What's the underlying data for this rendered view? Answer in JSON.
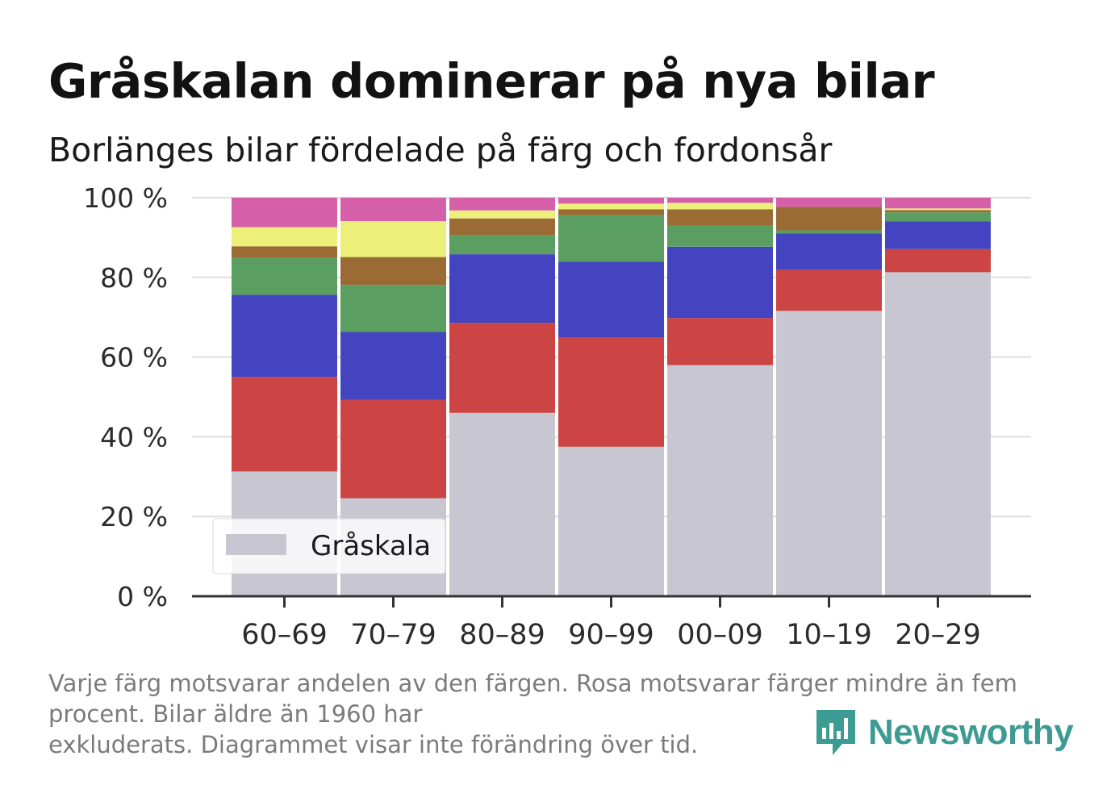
{
  "title": "Gråskalan dominerar på nya bilar",
  "subtitle": "Borlänges bilar fördelade på färg och fordonsår",
  "note": {
    "line1": "Varje färg motsvarar andelen av den färgen. Rosa motsvarar färger mindre än fem procent. Bilar äldre än 1960 har",
    "line2": "exkluderats. Diagrammet visar inte förändring över tid."
  },
  "logo": {
    "text": "Newsworthy",
    "icon": "bar-chart-badge-icon",
    "color": "#3c9b93"
  },
  "chart_data": {
    "type": "bar",
    "stacked": true,
    "categories": [
      "60–69",
      "70–79",
      "80–89",
      "90–99",
      "00–09",
      "10–19",
      "20–29"
    ],
    "y_ticks": [
      "0 %",
      "20 %",
      "40 %",
      "60 %",
      "80 %",
      "100 %"
    ],
    "ylim": [
      0,
      100
    ],
    "grid": true,
    "legend": {
      "placement": "bottom-left",
      "entries": [
        "Gråskala"
      ]
    },
    "series": [
      {
        "name": "Gråskala",
        "color": "#c8c6d0",
        "values": [
          31.3,
          24.6,
          46.0,
          37.5,
          58.0,
          71.6,
          81.3
        ]
      },
      {
        "color": "#cc4444",
        "values": [
          23.7,
          24.7,
          22.6,
          27.4,
          11.8,
          10.3,
          5.8
        ]
      },
      {
        "color": "#4444c0",
        "values": [
          20.6,
          17.0,
          17.2,
          19.0,
          17.9,
          9.1,
          7.0
        ]
      },
      {
        "color": "#5a9e62",
        "values": [
          9.3,
          11.8,
          4.8,
          11.7,
          5.3,
          0.8,
          2.2
        ]
      },
      {
        "color": "#9b6b35",
        "values": [
          2.9,
          7.0,
          4.2,
          1.5,
          4.1,
          5.9,
          0.6
        ]
      },
      {
        "color": "#ecf07a",
        "values": [
          4.8,
          9.0,
          2.0,
          1.4,
          1.6,
          0,
          0.4
        ]
      },
      {
        "color": "#d65faa",
        "values": [
          7.4,
          5.9,
          3.2,
          1.5,
          1.3,
          2.3,
          2.7
        ]
      }
    ]
  }
}
